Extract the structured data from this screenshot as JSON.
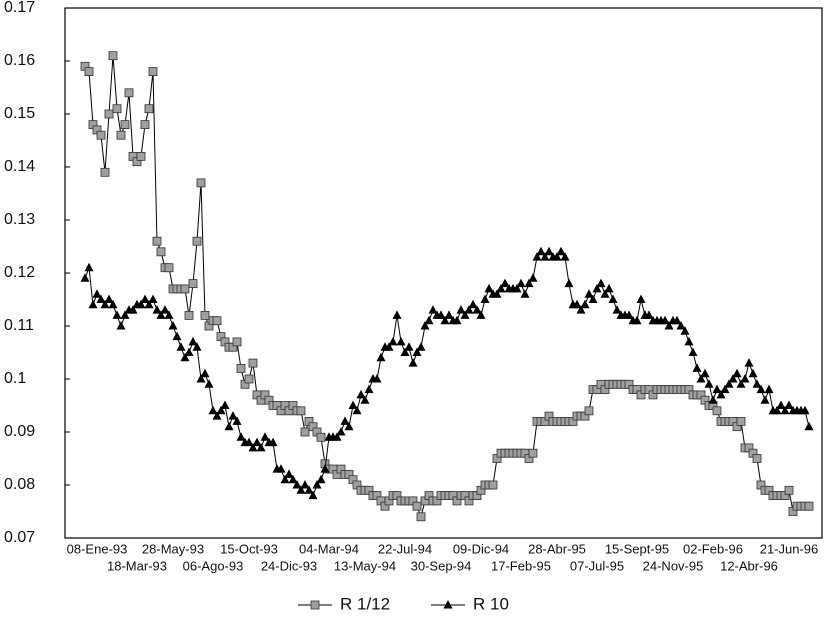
{
  "chart_data": {
    "type": "line",
    "categories": [
      null,
      null,
      null,
      "08-Ene-93",
      null,
      null,
      null,
      null,
      null,
      null,
      null,
      null,
      null,
      "18-Mar-93",
      null,
      null,
      null,
      null,
      null,
      null,
      null,
      null,
      "28-May-93",
      null,
      null,
      null,
      null,
      null,
      null,
      null,
      null,
      null,
      "06-Ago-93",
      null,
      null,
      null,
      null,
      null,
      null,
      null,
      null,
      "15-Oct-93",
      null,
      null,
      null,
      null,
      null,
      null,
      null,
      null,
      null,
      "24-Dic-93",
      null,
      null,
      null,
      null,
      null,
      null,
      null,
      null,
      null,
      "04-Mar-94",
      null,
      null,
      null,
      null,
      null,
      null,
      null,
      null,
      "13-May-94",
      null,
      null,
      null,
      null,
      null,
      null,
      null,
      null,
      null,
      "22-Jul-94",
      null,
      null,
      null,
      null,
      null,
      null,
      null,
      null,
      "30-Sep-94",
      null,
      null,
      null,
      null,
      null,
      null,
      null,
      null,
      null,
      "09-Dic-94",
      null,
      null,
      null,
      null,
      null,
      null,
      null,
      null,
      null,
      "17-Feb-95",
      null,
      null,
      null,
      null,
      null,
      null,
      null,
      null,
      "28-Abr-95",
      null,
      null,
      null,
      null,
      null,
      null,
      null,
      null,
      null,
      "07-Jul-95",
      null,
      null,
      null,
      null,
      null,
      null,
      null,
      null,
      null,
      "15-Sept-95",
      null,
      null,
      null,
      null,
      null,
      null,
      null,
      null,
      "24-Nov-95",
      null,
      null,
      null,
      null,
      null,
      null,
      null,
      null,
      null,
      "02-Feb-96",
      null,
      null,
      null,
      null,
      null,
      null,
      null,
      null,
      "12-Abr-96",
      null,
      null,
      null,
      null,
      null,
      null,
      null,
      null,
      null,
      "21-Jun-96",
      null,
      null,
      null,
      null,
      null
    ],
    "series": [
      {
        "name": "R 1/12",
        "color": "#000000",
        "marker": "square",
        "marker_color": "#a0a0a0",
        "values": [
          0.159,
          0.158,
          0.148,
          0.147,
          0.146,
          0.139,
          0.15,
          0.161,
          0.151,
          0.146,
          0.148,
          0.154,
          0.142,
          0.141,
          0.142,
          0.148,
          0.151,
          0.158,
          0.126,
          0.124,
          0.121,
          0.121,
          0.117,
          0.117,
          0.117,
          0.117,
          0.112,
          0.118,
          0.126,
          0.137,
          0.112,
          0.11,
          0.111,
          0.111,
          0.108,
          0.107,
          0.106,
          0.106,
          0.107,
          0.102,
          0.099,
          0.1,
          0.103,
          0.097,
          0.096,
          0.097,
          0.096,
          0.095,
          0.095,
          0.094,
          0.095,
          0.094,
          0.095,
          0.094,
          0.094,
          0.09,
          0.092,
          0.091,
          0.09,
          0.089,
          0.084,
          0.083,
          0.083,
          0.082,
          0.083,
          0.082,
          0.082,
          0.081,
          0.08,
          0.079,
          0.079,
          0.079,
          0.078,
          0.078,
          0.077,
          0.076,
          0.077,
          0.078,
          0.078,
          0.077,
          0.077,
          0.077,
          0.077,
          0.076,
          0.074,
          0.077,
          0.078,
          0.077,
          0.077,
          0.078,
          0.078,
          0.078,
          0.078,
          0.077,
          0.078,
          0.078,
          0.077,
          0.078,
          0.078,
          0.079,
          0.08,
          0.08,
          0.08,
          0.085,
          0.086,
          0.086,
          0.086,
          0.086,
          0.086,
          0.086,
          0.086,
          0.085,
          0.086,
          0.092,
          0.092,
          0.092,
          0.093,
          0.092,
          0.092,
          0.092,
          0.092,
          0.092,
          0.092,
          0.093,
          0.093,
          0.093,
          0.094,
          0.098,
          0.098,
          0.099,
          0.098,
          0.099,
          0.099,
          0.099,
          0.099,
          0.099,
          0.099,
          0.098,
          0.098,
          0.097,
          0.098,
          0.098,
          0.097,
          0.098,
          0.098,
          0.098,
          0.098,
          0.098,
          0.098,
          0.098,
          0.098,
          0.098,
          0.097,
          0.097,
          0.097,
          0.096,
          0.095,
          0.095,
          0.094,
          0.092,
          0.092,
          0.092,
          0.092,
          0.091,
          0.092,
          0.087,
          0.087,
          0.086,
          0.085,
          0.08,
          0.079,
          0.079,
          0.078,
          0.078,
          0.078,
          0.078,
          0.079,
          0.075,
          0.076,
          0.076,
          0.076,
          0.076
        ]
      },
      {
        "name": "R 10",
        "color": "#000000",
        "marker": "triangle",
        "marker_color": "#000000",
        "values": [
          0.119,
          0.121,
          0.114,
          0.116,
          0.115,
          0.114,
          0.115,
          0.114,
          0.112,
          0.11,
          0.112,
          0.113,
          0.113,
          0.114,
          0.114,
          0.115,
          0.114,
          0.115,
          0.113,
          0.112,
          0.113,
          0.112,
          0.11,
          0.108,
          0.106,
          0.104,
          0.105,
          0.107,
          0.106,
          0.1,
          0.101,
          0.099,
          0.094,
          0.093,
          0.094,
          0.095,
          0.091,
          0.093,
          0.092,
          0.089,
          0.088,
          0.088,
          0.087,
          0.088,
          0.087,
          0.089,
          0.088,
          0.088,
          0.083,
          0.083,
          0.081,
          0.082,
          0.081,
          0.08,
          0.079,
          0.08,
          0.079,
          0.078,
          0.08,
          0.081,
          0.083,
          0.089,
          0.089,
          0.089,
          0.09,
          0.092,
          0.091,
          0.095,
          0.094,
          0.097,
          0.096,
          0.098,
          0.1,
          0.1,
          0.104,
          0.106,
          0.106,
          0.107,
          0.112,
          0.107,
          0.105,
          0.106,
          0.103,
          0.105,
          0.106,
          0.11,
          0.111,
          0.113,
          0.112,
          0.112,
          0.111,
          0.112,
          0.111,
          0.111,
          0.113,
          0.112,
          0.113,
          0.114,
          0.113,
          0.112,
          0.115,
          0.117,
          0.116,
          0.116,
          0.117,
          0.118,
          0.117,
          0.117,
          0.117,
          0.118,
          0.116,
          0.118,
          0.119,
          0.123,
          0.124,
          0.123,
          0.124,
          0.123,
          0.123,
          0.124,
          0.123,
          0.118,
          0.114,
          0.114,
          0.113,
          0.114,
          0.116,
          0.115,
          0.117,
          0.118,
          0.116,
          0.117,
          0.115,
          0.113,
          0.112,
          0.112,
          0.112,
          0.111,
          0.111,
          0.115,
          0.112,
          0.112,
          0.111,
          0.111,
          0.111,
          0.111,
          0.11,
          0.111,
          0.111,
          0.11,
          0.109,
          0.107,
          0.105,
          0.102,
          0.1,
          0.101,
          0.099,
          0.096,
          0.098,
          0.097,
          0.098,
          0.099,
          0.1,
          0.101,
          0.099,
          0.1,
          0.103,
          0.101,
          0.099,
          0.098,
          0.096,
          0.098,
          0.094,
          0.094,
          0.095,
          0.094,
          0.095,
          0.094,
          0.094,
          0.094,
          0.094,
          0.091
        ]
      }
    ],
    "ylim": [
      0.07,
      0.17
    ],
    "yticks": [
      0.07,
      0.08,
      0.09,
      0.1,
      0.11,
      0.12,
      0.13,
      0.14,
      0.15,
      0.16,
      0.17
    ],
    "grid": false,
    "legend": "bottom"
  }
}
